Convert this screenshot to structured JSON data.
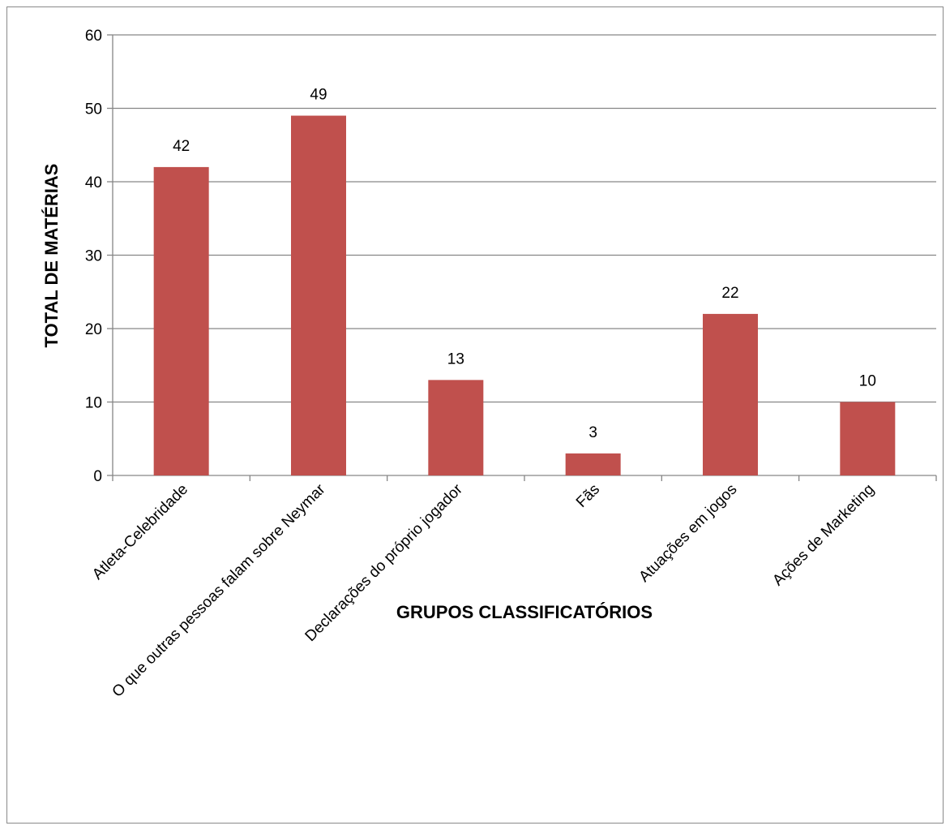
{
  "chart_data": {
    "type": "bar",
    "title": "",
    "xlabel": "GRUPOS CLASSIFICATÓRIOS",
    "ylabel": "TOTAL DE MATÉRIAS",
    "categories": [
      "Atleta-Celebridade",
      "O que outras pessoas falam sobre Neymar",
      "Declarações do próprio jogador",
      "Fãs",
      "Atuações em jogos",
      "Ações de Marketing"
    ],
    "values": [
      42,
      49,
      13,
      3,
      22,
      10
    ],
    "data_labels": [
      "42",
      "49",
      "13",
      "3",
      "22",
      "10"
    ],
    "ylim": [
      0,
      60
    ],
    "yticks": [
      0,
      10,
      20,
      30,
      40,
      50,
      60
    ],
    "grid": true,
    "legend": "none",
    "bar_color": "#c0504d",
    "grid_color": "#868686"
  }
}
